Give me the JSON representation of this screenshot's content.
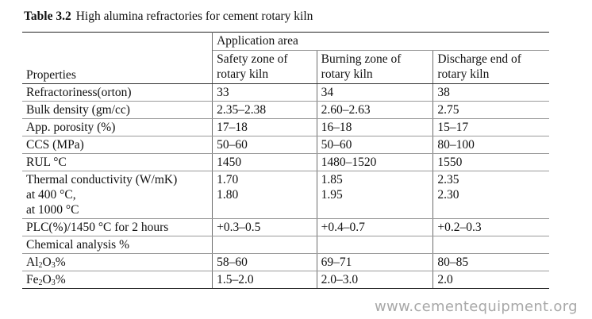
{
  "caption": {
    "number": "Table 3.2",
    "title": "High alumina refractories for cement rotary kiln"
  },
  "header": {
    "group_label": "Application area",
    "properties_label": "Properties",
    "columns": [
      {
        "line1": "Safety zone of",
        "line2": "rotary kiln"
      },
      {
        "line1": "Burning zone of",
        "line2": "rotary kiln"
      },
      {
        "line1": "Discharge end of",
        "line2": "rotary kiln"
      }
    ]
  },
  "rows": [
    {
      "property": "Refractoriness(orton)",
      "values": [
        "33",
        "34",
        "38"
      ]
    },
    {
      "property": "Bulk density (gm/cc)",
      "values": [
        "2.35–2.38",
        "2.60–2.63",
        "2.75"
      ]
    },
    {
      "property": "App. porosity (%)",
      "values": [
        "17–18",
        "16–18",
        "15–17"
      ]
    },
    {
      "property": "CCS (MPa)",
      "values": [
        "50–60",
        "50–60",
        "80–100"
      ]
    },
    {
      "property": "RUL °C",
      "values": [
        "1450",
        "1480–1520",
        "1550"
      ]
    }
  ],
  "thermal": {
    "lines": [
      "Thermal conductivity (W/mK)",
      "at 400 °C,",
      "at 1000 °C"
    ],
    "values": [
      [
        "1.70",
        "1.80"
      ],
      [
        "1.85",
        "1.95"
      ],
      [
        "2.35",
        "2.30"
      ]
    ]
  },
  "plc": {
    "property": "PLC(%)/1450 °C for 2 hours",
    "values": [
      "+0.3–0.5",
      "+0.4–0.7",
      "+0.2–0.3"
    ]
  },
  "chemical": {
    "label": "Chemical analysis %"
  },
  "al2o3": {
    "p1": "Al",
    "s1": "2",
    "p2": "O",
    "s2": "3",
    "p3": "%",
    "values": [
      "58–60",
      "69–71",
      "80–85"
    ]
  },
  "fe2o3": {
    "p1": "Fe",
    "s1": "2",
    "p2": "O",
    "s2": "3",
    "p3": "%",
    "values": [
      "1.5–2.0",
      "2.0–3.0",
      "2.0"
    ]
  },
  "watermark": "www.cementequipment.org"
}
